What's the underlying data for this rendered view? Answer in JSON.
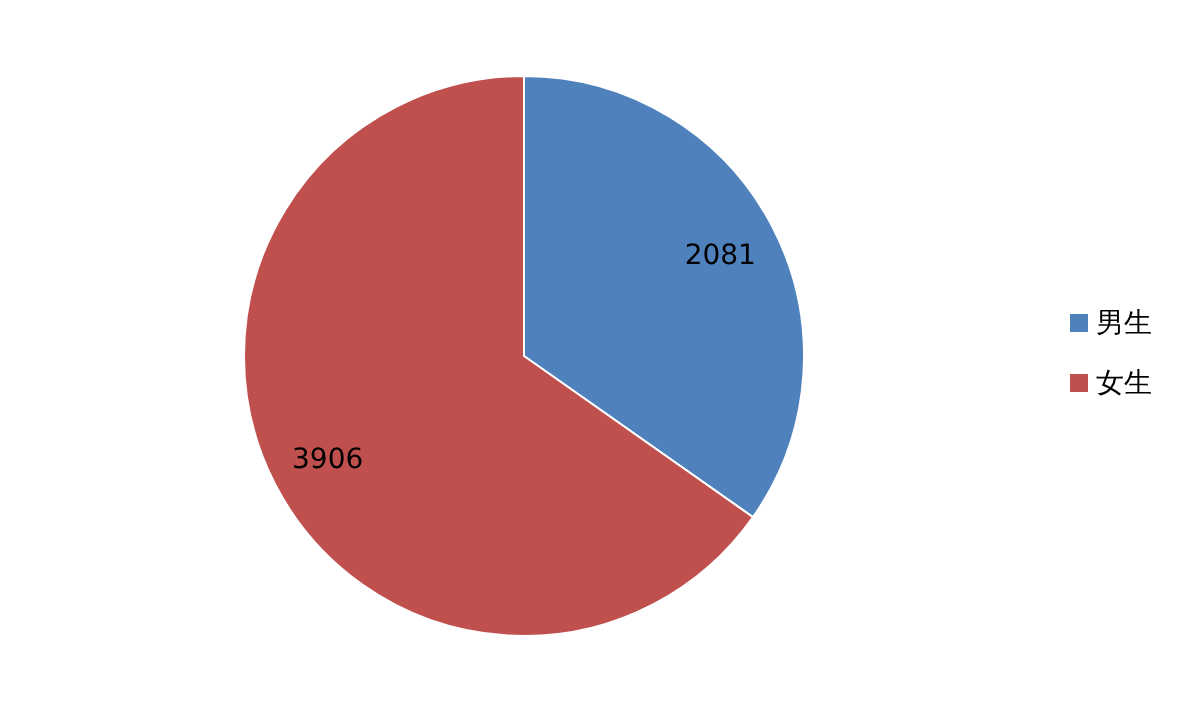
{
  "chart_data": {
    "type": "pie",
    "categories": [
      "男生",
      "女生"
    ],
    "values": [
      2081,
      3906
    ],
    "colors": [
      "#4f81bd",
      "#c0504d"
    ],
    "data_labels": true,
    "legend": "right"
  }
}
